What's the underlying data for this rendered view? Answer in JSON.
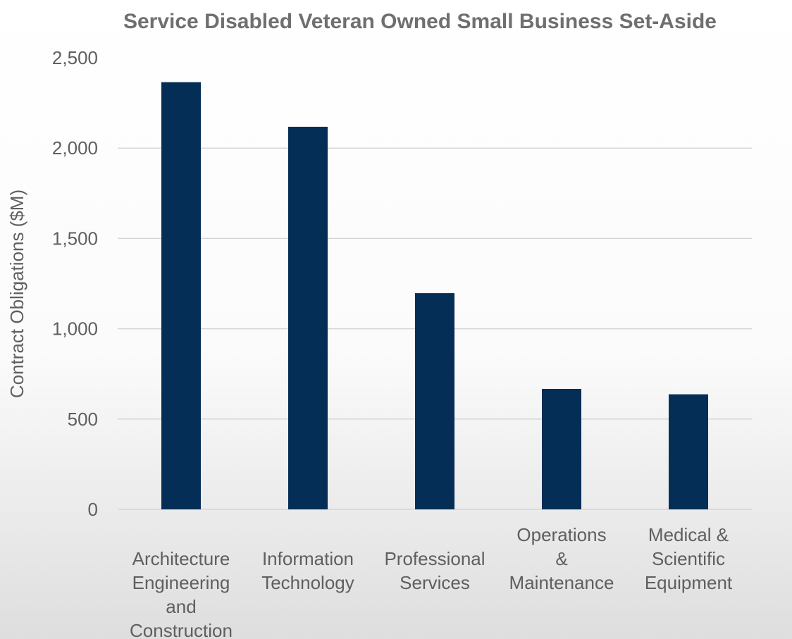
{
  "chart_data": {
    "type": "bar",
    "title": "Service Disabled Veteran Owned Small Business Set-Aside",
    "ylabel": "Contract Obligations ($M)",
    "xlabel": "",
    "ylim": [
      0,
      2500
    ],
    "yticks": [
      0,
      500,
      1000,
      1500,
      2000,
      2500
    ],
    "ytick_labels": [
      "0",
      "500",
      "1,000",
      "1,500",
      "2,000",
      "2,500"
    ],
    "categories": [
      [
        "Architecture",
        "Engineering",
        "and",
        "Construction"
      ],
      [
        "Information",
        "Technology"
      ],
      [
        "Professional",
        "Services"
      ],
      [
        "Operations",
        "&",
        "Maintenance"
      ],
      [
        "Medical &",
        "Scientific",
        "Equipment"
      ]
    ],
    "values": [
      2365,
      2118,
      1197,
      667,
      637
    ],
    "bar_color": "#052e57",
    "grid": true,
    "legend": "none"
  }
}
